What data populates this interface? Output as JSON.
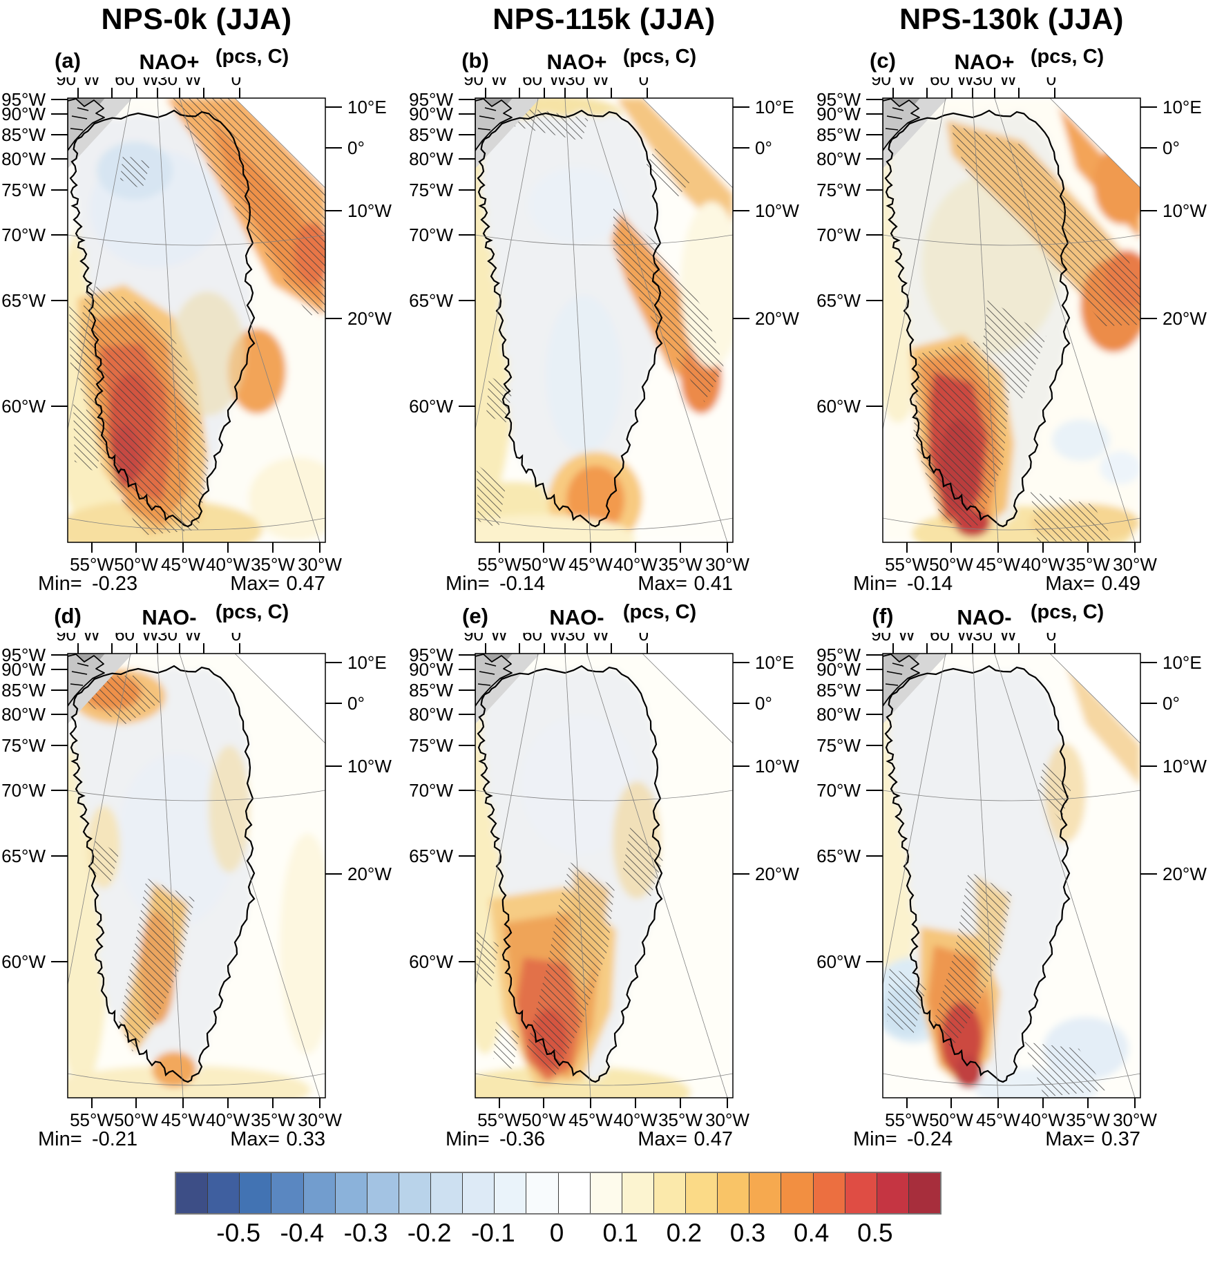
{
  "figure": {
    "column_titles": [
      "NPS-0k (JJA)",
      "NPS-115k (JJA)",
      "NPS-130k (JJA)"
    ],
    "panels": [
      {
        "label": "(a)",
        "phase": "NAO+",
        "units": "(pcs, C)",
        "min_label": "Min=",
        "min_value": "-0.23",
        "max_label": "Max=",
        "max_value": "0.47"
      },
      {
        "label": "(b)",
        "phase": "NAO+",
        "units": "(pcs, C)",
        "min_label": "Min=",
        "min_value": "-0.14",
        "max_label": "Max=",
        "max_value": "0.41"
      },
      {
        "label": "(c)",
        "phase": "NAO+",
        "units": "(pcs, C)",
        "min_label": "Min=",
        "min_value": "-0.14",
        "max_label": "Max=",
        "max_value": "0.49"
      },
      {
        "label": "(d)",
        "phase": "NAO-",
        "units": "(pcs, C)",
        "min_label": "Min=",
        "min_value": "-0.21",
        "max_label": "Max=",
        "max_value": "0.33"
      },
      {
        "label": "(e)",
        "phase": "NAO-",
        "units": "(pcs, C)",
        "min_label": "Min=",
        "min_value": "-0.36",
        "max_label": "Max=",
        "max_value": "0.47"
      },
      {
        "label": "(f)",
        "phase": "NAO-",
        "units": "(pcs, C)",
        "min_label": "Min=",
        "min_value": "-0.24",
        "max_label": "Max=",
        "max_value": "0.37"
      }
    ],
    "axes": {
      "top": [
        "90°W",
        "60°W",
        "30°W",
        "0°"
      ],
      "left": [
        "95°W",
        "90°W",
        "85°W",
        "80°W",
        "75°W",
        "70°W",
        "65°W",
        "60°W"
      ],
      "right": [
        "10°E",
        "0°",
        "10°W",
        "20°W"
      ],
      "bottom": [
        "55°W",
        "50°W",
        "45°W",
        "40°W",
        "35°W",
        "30°W"
      ]
    },
    "colorbar": {
      "labels": [
        "-0.5",
        "-0.4",
        "-0.3",
        "-0.2",
        "-0.1",
        "0",
        "0.1",
        "0.2",
        "0.3",
        "0.4",
        "0.5"
      ],
      "colors": [
        "#3d4e86",
        "#3f5f9f",
        "#4273b3",
        "#5a87c1",
        "#729dce",
        "#8bb2da",
        "#a3c3e3",
        "#b9d3ea",
        "#cde0f1",
        "#ddeaf6",
        "#eaf3fa",
        "#f8fbfd",
        "#ffffff",
        "#fefbec",
        "#fcf4d0",
        "#fbe9ab",
        "#fbda87",
        "#f9c467",
        "#f6a94f",
        "#f28f41",
        "#ec6f40",
        "#df4d44",
        "#c53542",
        "#a72e3c"
      ]
    }
  },
  "chart_data": {
    "type": "heatmap",
    "title": "",
    "panels": [
      {
        "panel": "a",
        "experiment": "NPS-0k",
        "season": "JJA",
        "phase": "NAO+",
        "units": "pcs, C",
        "min": -0.23,
        "max": 0.47
      },
      {
        "panel": "b",
        "experiment": "NPS-115k",
        "season": "JJA",
        "phase": "NAO+",
        "units": "pcs, C",
        "min": -0.14,
        "max": 0.41
      },
      {
        "panel": "c",
        "experiment": "NPS-130k",
        "season": "JJA",
        "phase": "NAO+",
        "units": "pcs, C",
        "min": -0.14,
        "max": 0.49
      },
      {
        "panel": "d",
        "experiment": "NPS-0k",
        "season": "JJA",
        "phase": "NAO-",
        "units": "pcs, C",
        "min": -0.21,
        "max": 0.33
      },
      {
        "panel": "e",
        "experiment": "NPS-115k",
        "season": "JJA",
        "phase": "NAO-",
        "units": "pcs, C",
        "min": -0.36,
        "max": 0.47
      },
      {
        "panel": "f",
        "experiment": "NPS-130k",
        "season": "JJA",
        "phase": "NAO-",
        "units": "pcs, C",
        "min": -0.24,
        "max": 0.37
      }
    ],
    "colorbar": {
      "range": [
        -0.6,
        0.6
      ],
      "step": 0.05,
      "tick_values": [
        -0.5,
        -0.4,
        -0.3,
        -0.2,
        -0.1,
        0,
        0.1,
        0.2,
        0.3,
        0.4,
        0.5
      ]
    },
    "map_axes": {
      "top_lon_ticks": [
        "90°W",
        "60°W",
        "30°W",
        "0°"
      ],
      "left_ticks": [
        "95°W",
        "90°W",
        "85°W",
        "80°W",
        "75°W",
        "70°W",
        "65°W",
        "60°W"
      ],
      "right_lon_ticks": [
        "10°E",
        "0°",
        "10°W",
        "20°W"
      ],
      "bottom_lon_ticks": [
        "55°W",
        "50°W",
        "45°W",
        "40°W",
        "35°W",
        "30°W"
      ]
    }
  }
}
